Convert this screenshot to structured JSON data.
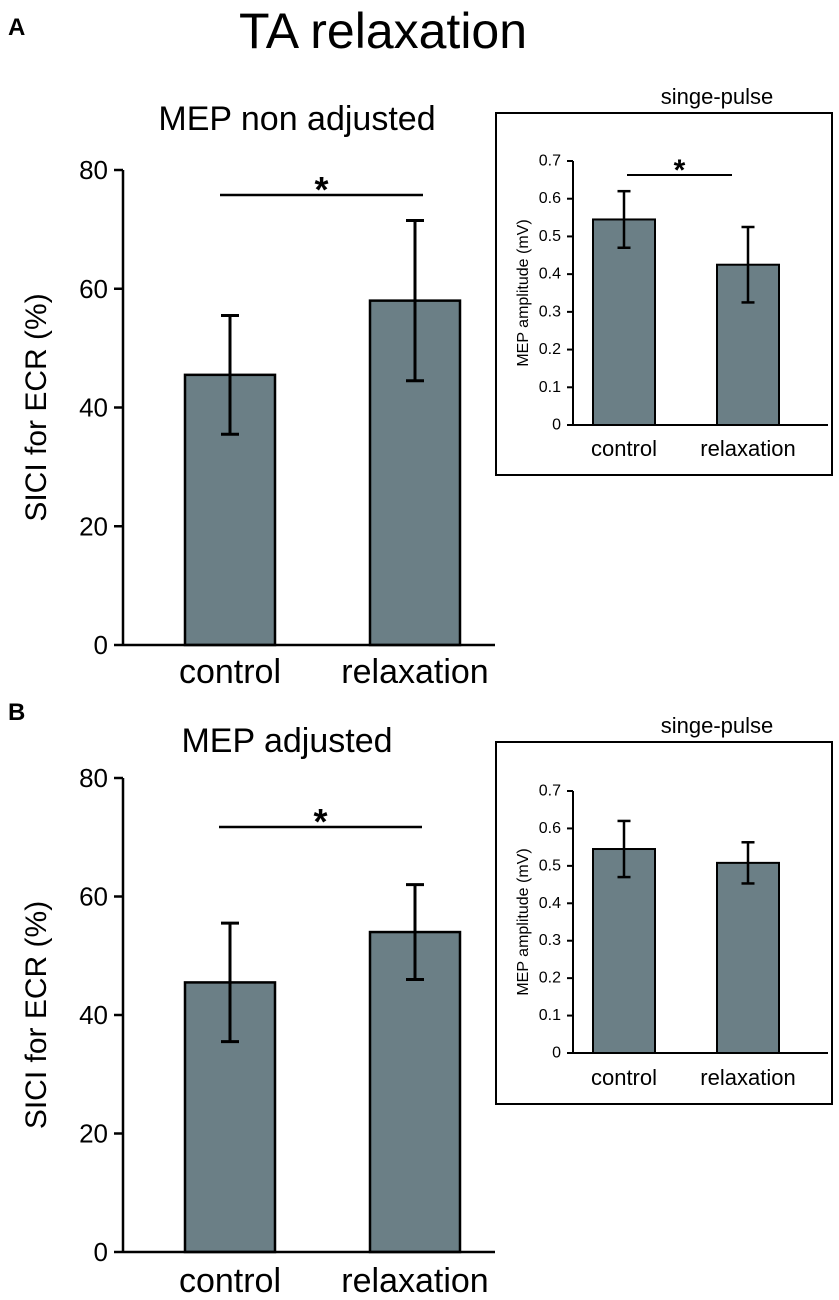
{
  "figure_title": "TA relaxation",
  "panel_labels": [
    "A",
    "B"
  ],
  "chart_data": [
    {
      "id": "A-main",
      "type": "bar",
      "panel": "A",
      "title": "MEP non adjusted",
      "xlabel": "",
      "ylabel": "SICI for ECR (%)",
      "categories": [
        "control",
        "relaxation"
      ],
      "values": [
        45.5,
        58
      ],
      "errors": [
        10,
        13.5
      ],
      "ylim": [
        0,
        80
      ],
      "yticks": [
        "0",
        "20",
        "40",
        "60",
        "80"
      ],
      "significance": "*",
      "bar_color": "#6b7f86"
    },
    {
      "id": "A-inset",
      "type": "bar",
      "panel": "A",
      "title": "singe-pulse",
      "xlabel": "",
      "ylabel": "MEP amplitude (mV)",
      "categories": [
        "control",
        "relaxation"
      ],
      "values": [
        0.545,
        0.425
      ],
      "errors": [
        0.075,
        0.1
      ],
      "ylim": [
        0,
        0.7
      ],
      "yticks": [
        "0",
        "0.1",
        "0.2",
        "0.3",
        "0.4",
        "0.5",
        "0.6",
        "0.7"
      ],
      "significance": "*",
      "bar_color": "#6b7f86"
    },
    {
      "id": "B-main",
      "type": "bar",
      "panel": "B",
      "title": "MEP adjusted",
      "xlabel": "",
      "ylabel": "SICI for ECR (%)",
      "categories": [
        "control",
        "relaxation"
      ],
      "values": [
        45.5,
        54
      ],
      "errors": [
        10,
        8
      ],
      "ylim": [
        0,
        80
      ],
      "yticks": [
        "0",
        "20",
        "40",
        "60",
        "80"
      ],
      "significance": "*",
      "bar_color": "#6b7f86"
    },
    {
      "id": "B-inset",
      "type": "bar",
      "panel": "B",
      "title": "singe-pulse",
      "xlabel": "",
      "ylabel": "MEP amplitude (mV)",
      "categories": [
        "control",
        "relaxation"
      ],
      "values": [
        0.545,
        0.508
      ],
      "errors": [
        0.075,
        0.055
      ],
      "ylim": [
        0,
        0.7
      ],
      "yticks": [
        "0",
        "0.1",
        "0.2",
        "0.3",
        "0.4",
        "0.5",
        "0.6",
        "0.7"
      ],
      "significance": "",
      "bar_color": "#6b7f86"
    }
  ]
}
